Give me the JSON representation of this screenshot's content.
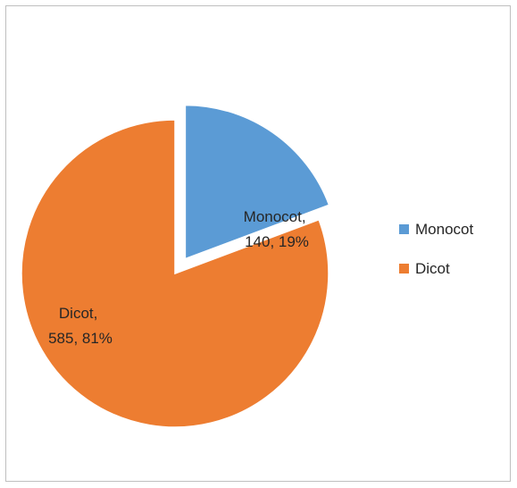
{
  "chart_data": {
    "type": "pie",
    "title": "",
    "categories": [
      "Monocot",
      "Dicot"
    ],
    "values": [
      140,
      585
    ],
    "percentages": [
      "19%",
      "81%"
    ],
    "colors": [
      "#5b9bd5",
      "#ed7d31"
    ],
    "exploded": [
      "Monocot"
    ],
    "data_labels": [
      {
        "line1": "Monocot,",
        "line2": "140, 19%"
      },
      {
        "line1": "Dicot,",
        "line2": "585, 81%"
      }
    ],
    "legend": {
      "position": "right",
      "entries": [
        "Monocot",
        "Dicot"
      ]
    }
  }
}
